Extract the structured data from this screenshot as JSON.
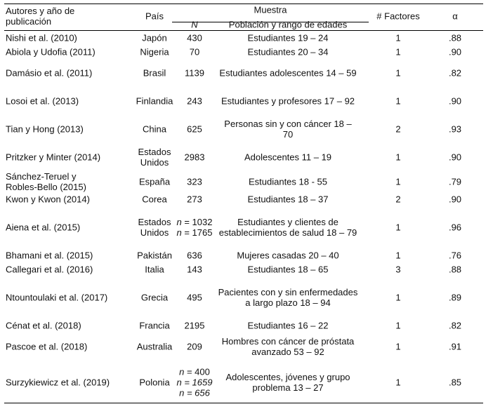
{
  "header": {
    "authors": [
      "Autores y año de",
      "publicación"
    ],
    "country": "País",
    "sample": "Muestra",
    "n": "N",
    "population": "Población y rango de edades",
    "factors": "# Factores",
    "alpha": "α"
  },
  "rows": [
    {
      "author": [
        "Nishi et al. (2010)"
      ],
      "country": [
        "Japón"
      ],
      "n": [
        "430"
      ],
      "n_italic": false,
      "population": [
        "Estudiantes 19 – 24"
      ],
      "factors": "1",
      "alpha": ".88"
    },
    {
      "author": [
        "Abiola y Udofia (2011)"
      ],
      "country": [
        "Nigeria"
      ],
      "n": [
        "70"
      ],
      "n_italic": false,
      "population": [
        "Estudiantes 20 – 34"
      ],
      "factors": "1",
      "alpha": ".90"
    },
    {
      "author": [
        "Damásio et al. (2011)"
      ],
      "country": [
        "Brasil"
      ],
      "n": [
        "1139"
      ],
      "n_italic": false,
      "population": [
        "Estudiantes adolescentes 14 – 59"
      ],
      "factors": "1",
      "alpha": ".82"
    },
    {
      "author": [
        "Losoi et al. (2013)"
      ],
      "country": [
        "Finlandia"
      ],
      "n": [
        "243"
      ],
      "n_italic": false,
      "population": [
        "Estudiantes y profesores 17 – 92"
      ],
      "factors": "1",
      "alpha": ".90"
    },
    {
      "author": [
        "Tian y Hong (2013)"
      ],
      "country": [
        "China"
      ],
      "n": [
        "625"
      ],
      "n_italic": false,
      "population": [
        "Personas sin y con cáncer 18 –",
        "70"
      ],
      "factors": "2",
      "alpha": ".93"
    },
    {
      "author": [
        "Pritzker y Minter (2014)"
      ],
      "country": [
        "Estados",
        "Unidos"
      ],
      "n": [
        "2983"
      ],
      "n_italic": false,
      "population": [
        "Adolescentes 11 – 19"
      ],
      "factors": "1",
      "alpha": ".90"
    },
    {
      "author": [
        "Sánchez-Teruel y",
        "Robles-Bello (2015)"
      ],
      "country": [
        "España"
      ],
      "n": [
        "323"
      ],
      "n_italic": false,
      "population": [
        "Estudiantes 18 - 55"
      ],
      "factors": "1",
      "alpha": ".79"
    },
    {
      "author": [
        "Kwon y Kwon (2014)"
      ],
      "country": [
        "Corea"
      ],
      "n": [
        "273"
      ],
      "n_italic": false,
      "population": [
        "Estudiantes 18 – 37"
      ],
      "factors": "2",
      "alpha": ".90"
    },
    {
      "author": [
        "Aiena et al. (2015)"
      ],
      "country": [
        "Estados",
        "Unidos"
      ],
      "n": [
        "n = 1032",
        "n = 1765"
      ],
      "n_italic": false,
      "population": [
        "Estudiantes y clientes de",
        "establecimientos de salud 18 – 79"
      ],
      "factors": "1",
      "alpha": ".96"
    },
    {
      "author": [
        "Bhamani et al. (2015)"
      ],
      "country": [
        "Pakistán"
      ],
      "n": [
        "636"
      ],
      "n_italic": false,
      "population": [
        "Mujeres casadas 20 – 40"
      ],
      "factors": "1",
      "alpha": ".76"
    },
    {
      "author": [
        "Callegari et al. (2016)"
      ],
      "country": [
        "Italia"
      ],
      "n": [
        "143"
      ],
      "n_italic": false,
      "population": [
        "Estudiantes 18 – 65"
      ],
      "factors": "3",
      "alpha": ".88"
    },
    {
      "author": [
        "Ntountoulaki et al. (2017)"
      ],
      "country": [
        "Grecia"
      ],
      "n": [
        "495"
      ],
      "n_italic": false,
      "population": [
        "Pacientes con y sin enfermedades",
        "a largo plazo 18 – 94"
      ],
      "factors": "1",
      "alpha": ".89"
    },
    {
      "author": [
        "Cénat et al. (2018)"
      ],
      "country": [
        "Francia"
      ],
      "n": [
        "2195"
      ],
      "n_italic": false,
      "population": [
        "Estudiantes 16 – 22"
      ],
      "factors": "1",
      "alpha": ".82"
    },
    {
      "author": [
        "Pascoe et al. (2018)"
      ],
      "country": [
        "Australia"
      ],
      "n": [
        "209"
      ],
      "n_italic": false,
      "population": [
        "Hombres con cáncer de próstata",
        "avanzado 53 – 92"
      ],
      "factors": "1",
      "alpha": ".91"
    },
    {
      "author": [
        "Surzykiewicz et al. (2019)"
      ],
      "country": [
        "Polonia"
      ],
      "n": [
        "n = 400",
        "n = 1659",
        "n = 656"
      ],
      "n_italic": true,
      "population": [
        "Adolescentes, jóvenes y grupo",
        "problema 13 – 27"
      ],
      "factors": "1",
      "alpha": ".85"
    }
  ]
}
